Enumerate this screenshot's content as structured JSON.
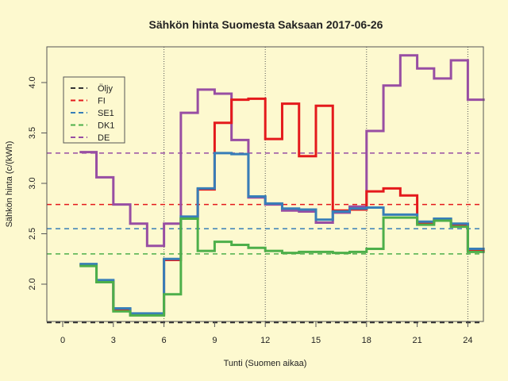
{
  "chart_data": {
    "type": "line",
    "step": true,
    "title": "Sähkön hinta Suomesta Saksaan 2017-06-26",
    "xlabel": "Tunti (Suomen aikaa)",
    "ylabel": "Sähkön hinta (c/(kWh)",
    "xlim": [
      -0.5,
      25
    ],
    "ylim": [
      1.62,
      4.37
    ],
    "xticks": [
      0,
      3,
      6,
      9,
      12,
      15,
      18,
      21,
      24
    ],
    "yticks": [
      2.0,
      2.5,
      3.0,
      3.5,
      4.0
    ],
    "ytick_labels": [
      "2.0",
      "2.5",
      "3.0",
      "3.5",
      "4.0"
    ],
    "vlines": [
      6,
      12,
      18,
      24
    ],
    "legend_position": "top-left",
    "x": [
      1,
      2,
      3,
      4,
      5,
      6,
      7,
      8,
      9,
      10,
      11,
      12,
      13,
      14,
      15,
      16,
      17,
      18,
      19,
      20,
      21,
      22,
      23,
      24,
      25
    ],
    "series": [
      {
        "name": "Öljy",
        "color": "#333333",
        "style": "dashed-hline",
        "values": [
          1.62
        ]
      },
      {
        "name": "FI",
        "color": "#e41a1c",
        "avg": 2.79,
        "values": [
          2.19,
          2.03,
          1.75,
          1.7,
          1.7,
          2.24,
          2.65,
          2.94,
          3.6,
          3.83,
          3.84,
          3.44,
          3.79,
          3.27,
          3.77,
          2.73,
          2.74,
          2.92,
          2.95,
          2.88,
          2.61,
          2.64,
          2.59,
          2.33
        ]
      },
      {
        "name": "SE1",
        "color": "#377eb8",
        "avg": 2.55,
        "values": [
          2.2,
          2.04,
          1.76,
          1.71,
          1.71,
          2.25,
          2.67,
          2.95,
          3.3,
          3.29,
          2.87,
          2.8,
          2.75,
          2.74,
          2.64,
          2.72,
          2.75,
          2.76,
          2.69,
          2.69,
          2.62,
          2.65,
          2.6,
          2.35
        ]
      },
      {
        "name": "DK1",
        "color": "#4daf4a",
        "avg": 2.3,
        "values": [
          2.18,
          2.02,
          1.73,
          1.69,
          1.69,
          1.9,
          2.65,
          2.33,
          2.42,
          2.39,
          2.36,
          2.33,
          2.31,
          2.32,
          2.32,
          2.31,
          2.32,
          2.35,
          2.66,
          2.66,
          2.59,
          2.63,
          2.57,
          2.32
        ]
      },
      {
        "name": "DE",
        "color": "#984ea3",
        "avg": 3.3,
        "values": [
          3.31,
          3.06,
          2.79,
          2.6,
          2.38,
          2.6,
          3.7,
          3.93,
          3.89,
          3.43,
          2.86,
          2.79,
          2.73,
          2.72,
          2.61,
          2.71,
          2.77,
          3.52,
          3.97,
          4.27,
          4.14,
          4.04,
          4.22,
          3.83
        ]
      }
    ]
  }
}
